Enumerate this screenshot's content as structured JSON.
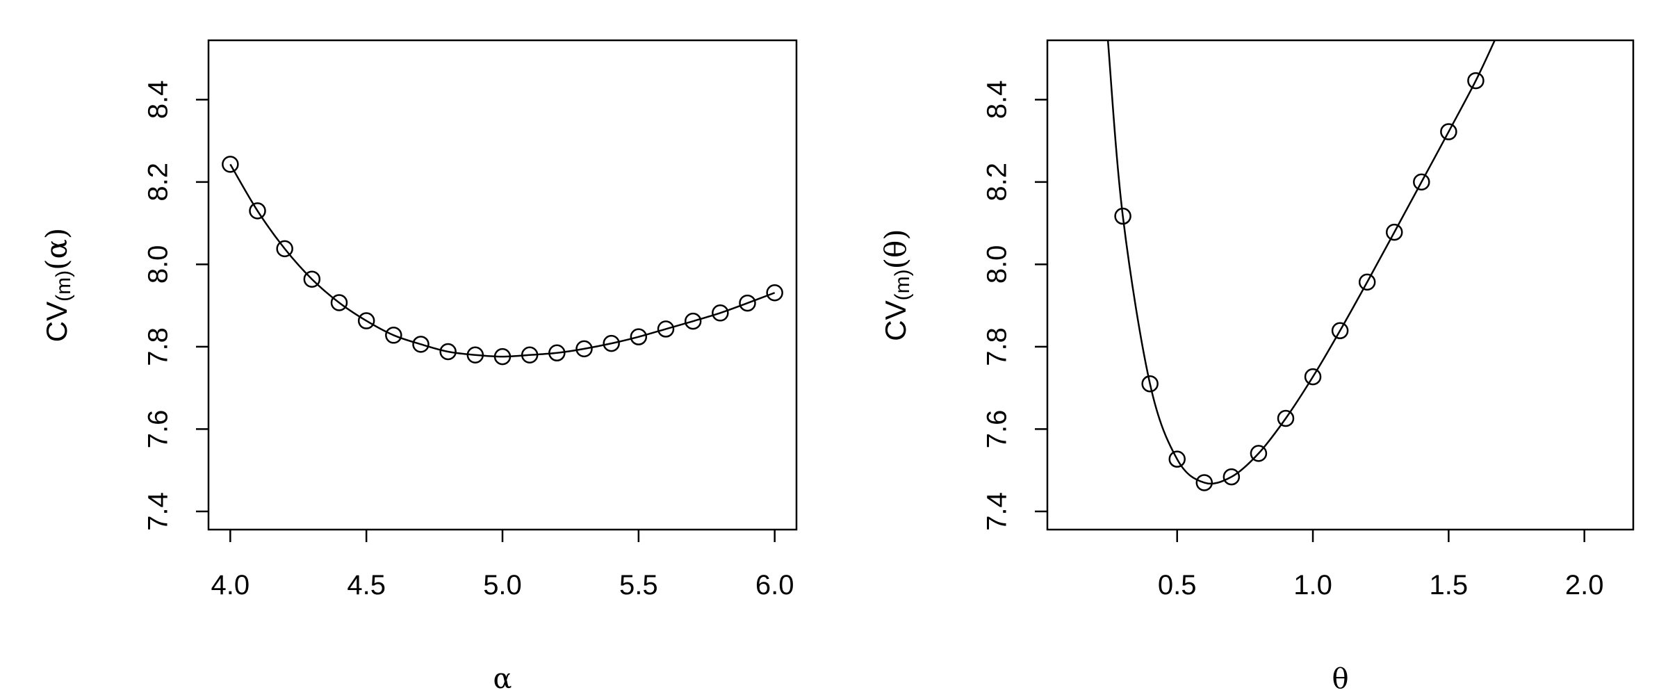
{
  "chart_data": [
    {
      "type": "line",
      "title": "",
      "xlabel": "α",
      "ylabel_main": "CV",
      "ylabel_sub": "(m)",
      "ylabel_arg": "(α)",
      "xlim": [
        3.92,
        6.08
      ],
      "ylim": [
        7.356,
        8.544
      ],
      "xticks": [
        4.0,
        4.5,
        5.0,
        5.5,
        6.0
      ],
      "xtick_labels": [
        "4.0",
        "4.5",
        "5.0",
        "5.5",
        "6.0"
      ],
      "yticks": [
        7.4,
        7.6,
        7.8,
        8.0,
        8.2,
        8.4
      ],
      "ytick_labels": [
        "7.4",
        "7.6",
        "7.8",
        "8.0",
        "8.2",
        "8.4"
      ],
      "grid": false,
      "marker": "open-circle",
      "x": [
        4.0,
        4.1,
        4.2,
        4.3,
        4.4,
        4.5,
        4.6,
        4.7,
        4.8,
        4.9,
        5.0,
        5.1,
        5.2,
        5.3,
        5.4,
        5.5,
        5.6,
        5.7,
        5.8,
        5.9,
        6.0
      ],
      "y": [
        8.243,
        8.13,
        8.038,
        7.964,
        7.907,
        7.863,
        7.828,
        7.806,
        7.788,
        7.78,
        7.776,
        7.78,
        7.785,
        7.795,
        7.808,
        7.824,
        7.843,
        7.862,
        7.882,
        7.906,
        7.931
      ],
      "line_x": [
        4.0,
        4.1,
        4.2,
        4.3,
        4.4,
        4.5,
        4.6,
        4.7,
        4.8,
        4.9,
        5.0,
        5.1,
        5.2,
        5.3,
        5.4,
        5.5,
        5.6,
        5.7,
        5.8,
        5.9,
        6.0
      ],
      "line_y": [
        8.243,
        8.13,
        8.038,
        7.964,
        7.907,
        7.863,
        7.828,
        7.806,
        7.788,
        7.78,
        7.776,
        7.78,
        7.785,
        7.795,
        7.808,
        7.824,
        7.843,
        7.862,
        7.882,
        7.906,
        7.931
      ]
    },
    {
      "type": "line",
      "title": "",
      "xlabel": "θ",
      "ylabel_main": "CV",
      "ylabel_sub": "(m)",
      "ylabel_arg": "(θ)",
      "xlim": [
        0.022,
        2.18
      ],
      "ylim": [
        7.356,
        8.544
      ],
      "xticks": [
        0.5,
        1.0,
        1.5,
        2.0
      ],
      "xtick_labels": [
        "0.5",
        "1.0",
        "1.5",
        "2.0"
      ],
      "yticks": [
        7.4,
        7.6,
        7.8,
        8.0,
        8.2,
        8.4
      ],
      "ytick_labels": [
        "7.4",
        "7.6",
        "7.8",
        "8.0",
        "8.2",
        "8.4"
      ],
      "grid": false,
      "marker": "open-circle",
      "x": [
        0.3,
        0.4,
        0.5,
        0.6,
        0.7,
        0.8,
        0.9,
        1.0,
        1.1,
        1.2,
        1.3,
        1.4,
        1.5,
        1.6
      ],
      "y": [
        8.117,
        7.71,
        7.527,
        7.47,
        7.484,
        7.541,
        7.626,
        7.727,
        7.839,
        7.957,
        8.078,
        8.2,
        8.322,
        8.446
      ],
      "line_x": [
        0.245,
        0.3,
        0.4,
        0.5,
        0.6,
        0.7,
        0.8,
        0.9,
        1.0,
        1.1,
        1.2,
        1.3,
        1.4,
        1.5,
        1.6,
        1.67
      ],
      "line_y": [
        8.544,
        8.117,
        7.71,
        7.527,
        7.47,
        7.484,
        7.541,
        7.626,
        7.727,
        7.839,
        7.957,
        8.078,
        8.2,
        8.322,
        8.446,
        8.544
      ]
    }
  ]
}
